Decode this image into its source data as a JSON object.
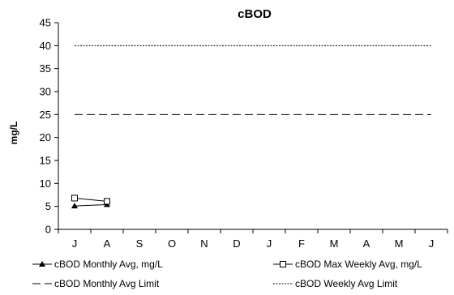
{
  "chart_data": {
    "type": "line",
    "title": "cBOD",
    "xlabel": "",
    "ylabel": "mg/L",
    "categories": [
      "J",
      "A",
      "S",
      "O",
      "N",
      "D",
      "J",
      "F",
      "M",
      "A",
      "M",
      "J"
    ],
    "ylim": [
      0,
      45
    ],
    "yticks": [
      0,
      5,
      10,
      15,
      20,
      25,
      30,
      35,
      40,
      45
    ],
    "grid": false,
    "legend_position": "bottom",
    "series": [
      {
        "name": "cBOD Monthly Avg, mg/L",
        "marker": "filled-triangle",
        "line_style": "solid",
        "color": "#000000",
        "values": [
          5.1,
          5.4,
          null,
          null,
          null,
          null,
          null,
          null,
          null,
          null,
          null,
          null
        ]
      },
      {
        "name": "cBOD Max Weekly Avg, mg/L",
        "marker": "open-square",
        "line_style": "solid",
        "color": "#000000",
        "values": [
          6.8,
          6.1,
          null,
          null,
          null,
          null,
          null,
          null,
          null,
          null,
          null,
          null
        ]
      },
      {
        "name": "cBOD Monthly Avg Limit",
        "marker": "none",
        "line_style": "dashed",
        "color": "#000000",
        "values": [
          25,
          25,
          25,
          25,
          25,
          25,
          25,
          25,
          25,
          25,
          25,
          25
        ]
      },
      {
        "name": "cBOD Weekly Avg Limit",
        "marker": "none",
        "line_style": "dotted",
        "color": "#000000",
        "values": [
          40,
          40,
          40,
          40,
          40,
          40,
          40,
          40,
          40,
          40,
          40,
          40
        ]
      }
    ]
  }
}
